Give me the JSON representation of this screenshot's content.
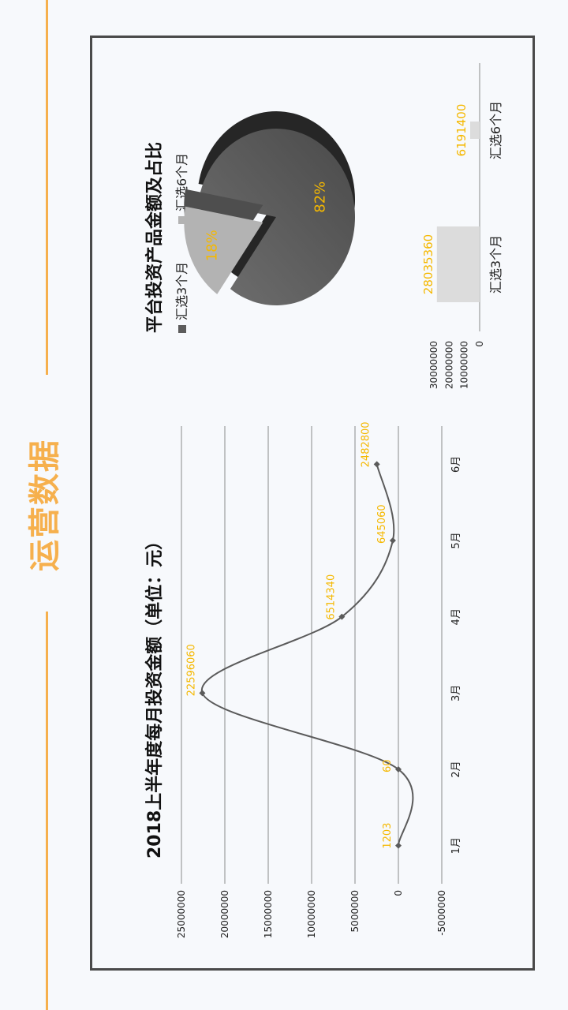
{
  "page": {
    "title": "运营数据"
  },
  "colors": {
    "accent": "#f6b04d",
    "label": "#f5b800",
    "line": "#5b5b5b",
    "bar": "#dcdcdc",
    "pie_dark": "#5c5c5c",
    "pie_light": "#b3b3b3"
  },
  "chart_data": [
    {
      "type": "line",
      "title": "2018上半年度每月投资金额（单位：元）",
      "categories": [
        "1月",
        "2月",
        "3月",
        "4月",
        "5月",
        "6月"
      ],
      "values": [
        1203,
        60,
        22596060,
        6514340,
        645060,
        2482800
      ],
      "data_labels": [
        "1203",
        "60",
        "22596060",
        "6514340",
        "645060",
        "2482800"
      ],
      "y_ticks": [
        "25000000",
        "20000000",
        "15000000",
        "10000000",
        "5000000",
        "0",
        "-5000000"
      ],
      "ylim": [
        -5000000,
        25000000
      ],
      "grid": true,
      "smooth": true
    },
    {
      "type": "pie",
      "title": "平台投资产品金额及占比",
      "legend": [
        "汇选3个月",
        "汇选6个月"
      ],
      "legend_placement": "top",
      "slices": [
        {
          "name": "汇选3个月",
          "percent": 82,
          "label": "82%"
        },
        {
          "name": "汇选6个月",
          "percent": 18,
          "label": "18%"
        }
      ]
    },
    {
      "type": "bar",
      "categories": [
        "汇选3个月",
        "汇选6个月"
      ],
      "values": [
        28035360,
        6191400
      ],
      "data_labels": [
        "28035360",
        "6191400"
      ],
      "y_ticks": [
        "30000000",
        "20000000",
        "10000000",
        "0"
      ],
      "ylim": [
        0,
        30000000
      ]
    }
  ]
}
